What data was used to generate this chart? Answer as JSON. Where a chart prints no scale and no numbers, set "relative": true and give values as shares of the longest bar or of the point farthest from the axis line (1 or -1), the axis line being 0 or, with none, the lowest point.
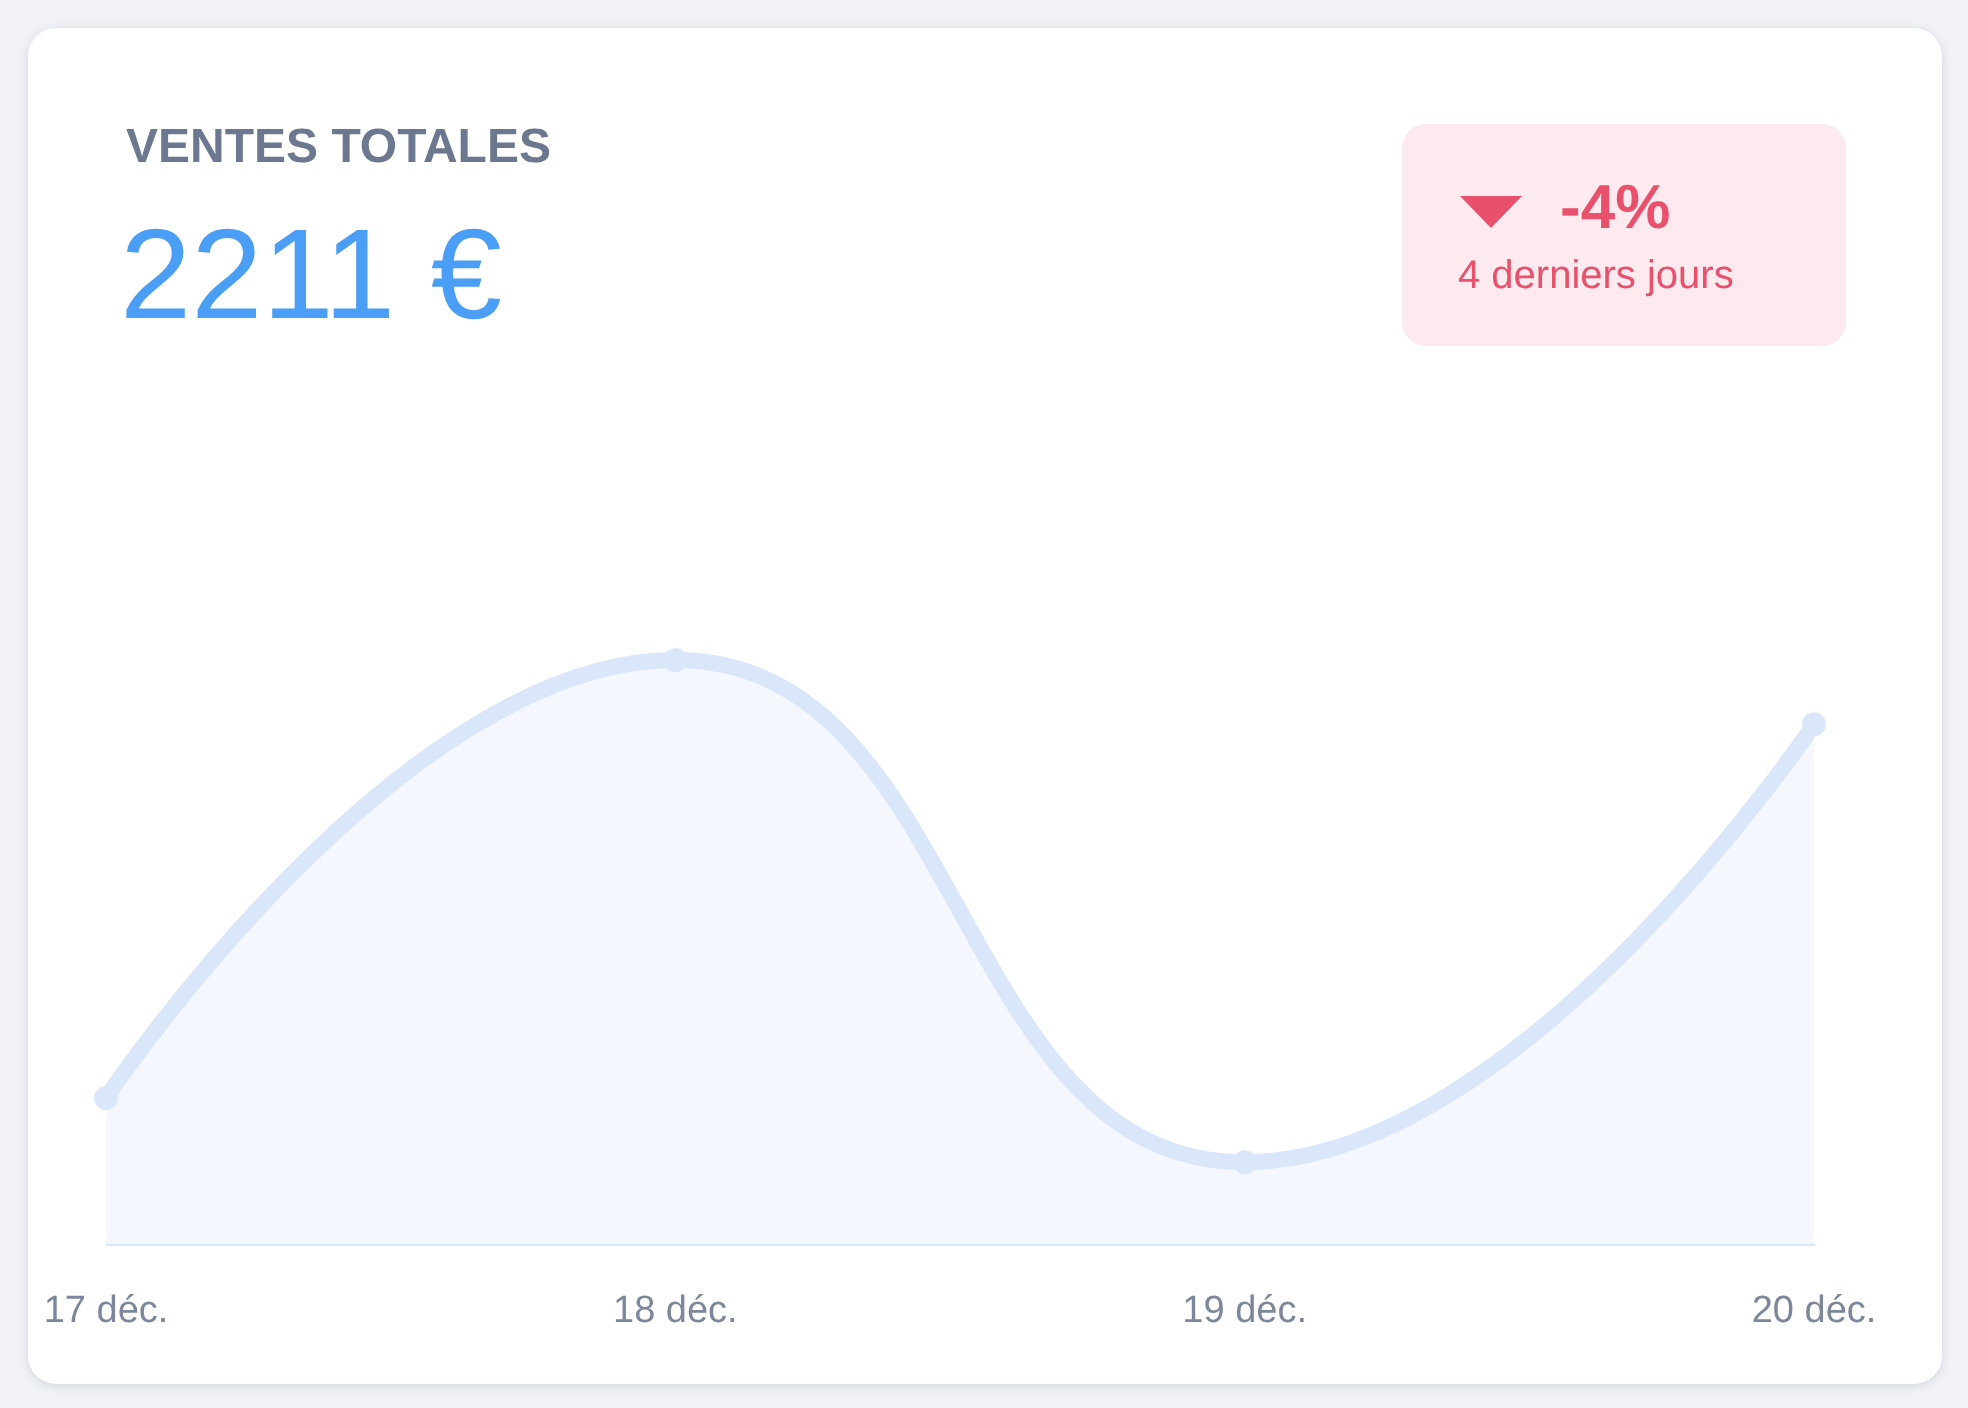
{
  "chart_data": {
    "type": "area",
    "title": "VENTES TOTALES",
    "subtitle": "2211 €",
    "annotations": [
      "-4%",
      "4 derniers jours"
    ],
    "categories": [
      "17 déc.",
      "18 déc.",
      "19 déc.",
      "20 déc."
    ],
    "values": [
      0.25,
      1,
      0.14,
      0.89
    ],
    "color": "#dae6fa",
    "relative": true,
    "marker": "circle",
    "line_style": "solid"
  }
}
